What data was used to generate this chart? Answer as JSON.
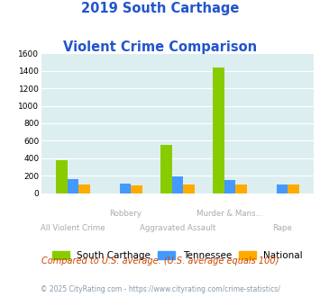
{
  "title_line1": "2019 South Carthage",
  "title_line2": "Violent Crime Comparison",
  "x_labels_row1": [
    "",
    "Robbery",
    "",
    "Murder & Mans...",
    ""
  ],
  "x_labels_row2": [
    "All Violent Crime",
    "",
    "Aggravated Assault",
    "",
    "Rape"
  ],
  "south_carthage": [
    380,
    0,
    550,
    1440,
    0
  ],
  "tennessee": [
    155,
    105,
    190,
    145,
    100
  ],
  "national": [
    95,
    90,
    95,
    95,
    95
  ],
  "color_sc": "#88cc00",
  "color_tn": "#4499ff",
  "color_nat": "#ffaa00",
  "ylim": [
    0,
    1600
  ],
  "yticks": [
    0,
    200,
    400,
    600,
    800,
    1000,
    1200,
    1400,
    1600
  ],
  "bg_color": "#ddeef0",
  "legend_labels": [
    "South Carthage",
    "Tennessee",
    "National"
  ],
  "footnote1": "Compared to U.S. average. (U.S. average equals 100)",
  "footnote2": "© 2025 CityRating.com - https://www.cityrating.com/crime-statistics/",
  "title_color": "#2255cc",
  "xlabel_color": "#aaaaaa",
  "footnote1_color": "#cc4400",
  "footnote2_color": "#8899aa"
}
